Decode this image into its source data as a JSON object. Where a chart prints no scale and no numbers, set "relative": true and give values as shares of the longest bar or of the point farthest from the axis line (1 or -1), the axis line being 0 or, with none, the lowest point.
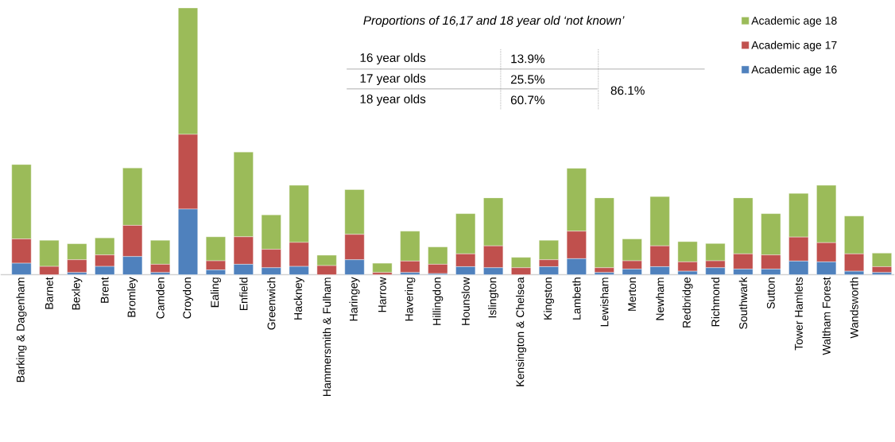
{
  "chart_data": {
    "type": "bar",
    "title": "Proportions of 16,17 and 18 year old ‘not known’",
    "categories": [
      "Barking & Dagenham",
      "Barnet",
      "Bexley",
      "Brent",
      "Bromley",
      "Camden",
      "Croydon",
      "Ealing",
      "Enfield",
      "Greenwich",
      "Hackney",
      "Hammersmith & Fulham",
      "Haringey",
      "Harrow",
      "Havering",
      "Hillingdon",
      "Hounslow",
      "Islington",
      "Kensington & Chelsea",
      "Kingston",
      "Lambeth",
      "Lewisham",
      "Merton",
      "Newham",
      "Redbridge",
      "Richmond",
      "Southwark",
      "Sutton",
      "Tower Hamlets",
      "Waltham Forest",
      "Wandsworth",
      null
    ],
    "relative": true,
    "stacked": true,
    "legend": "top right",
    "series": [
      {
        "name": "Academic age 16",
        "color": "#4f81bd",
        "values": [
          0.043,
          0,
          0.008,
          0.031,
          0.068,
          0.008,
          0.246,
          0.018,
          0.039,
          0.026,
          0.031,
          0,
          0.056,
          0,
          0.008,
          0.004,
          0.03,
          0.026,
          0,
          0.03,
          0.06,
          0.008,
          0.021,
          0.03,
          0.013,
          0.026,
          0.021,
          0.021,
          0.051,
          0.048,
          0.013,
          0.008
        ]
      },
      {
        "name": "Academic age 17",
        "color": "#c0504d",
        "values": [
          0.091,
          0.031,
          0.048,
          0.043,
          0.117,
          0.031,
          0.28,
          0.034,
          0.103,
          0.069,
          0.09,
          0.034,
          0.095,
          0.008,
          0.043,
          0.035,
          0.048,
          0.082,
          0.026,
          0.026,
          0.103,
          0.018,
          0.031,
          0.078,
          0.035,
          0.026,
          0.057,
          0.053,
          0.09,
          0.072,
          0.065,
          0.022
        ]
      },
      {
        "name": "Academic age 18",
        "color": "#9bbb59",
        "values": [
          0.279,
          0.098,
          0.06,
          0.064,
          0.215,
          0.09,
          0.474,
          0.09,
          0.318,
          0.129,
          0.214,
          0.039,
          0.168,
          0.035,
          0.112,
          0.065,
          0.151,
          0.18,
          0.039,
          0.073,
          0.236,
          0.262,
          0.082,
          0.185,
          0.076,
          0.065,
          0.21,
          0.155,
          0.164,
          0.215,
          0.142,
          0.051
        ]
      }
    ],
    "annotations": [
      "16 year olds",
      "13.9%",
      "17 year olds",
      "25.5%",
      "18 year olds",
      "60.7%",
      "86.1%"
    ]
  }
}
